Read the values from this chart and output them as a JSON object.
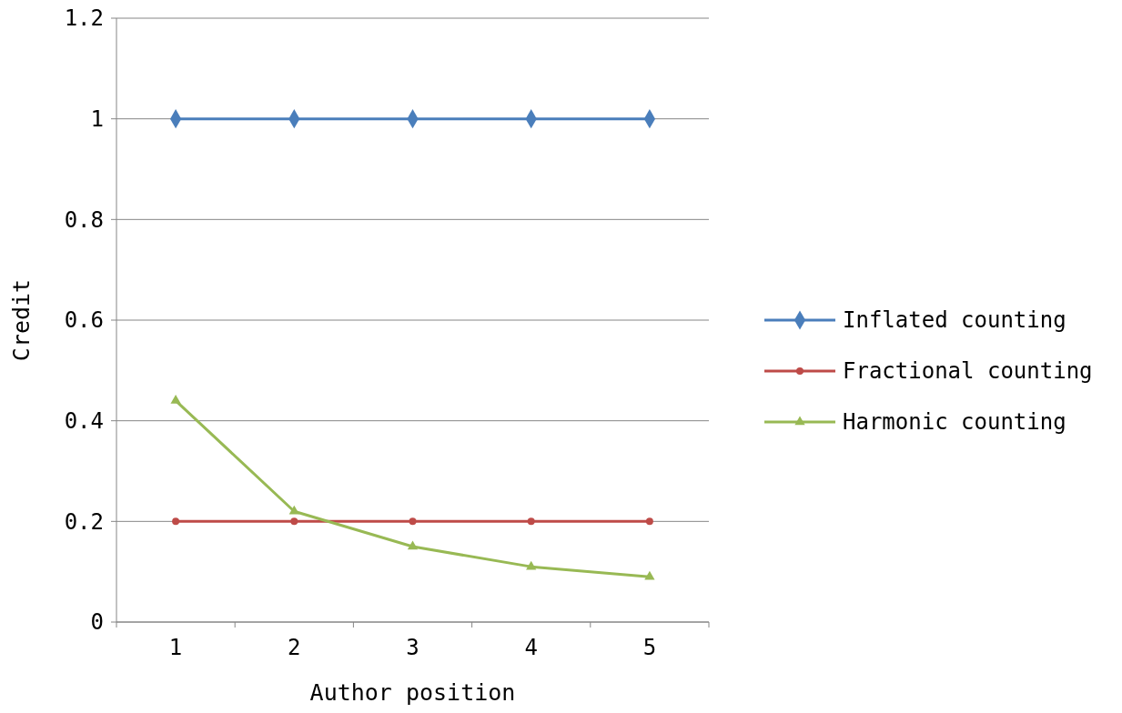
{
  "chart_data": {
    "type": "line",
    "xlabel": "Author position",
    "ylabel": "Credit",
    "categories": [
      "1",
      "2",
      "3",
      "4",
      "5"
    ],
    "series": [
      {
        "name": "Inflated counting",
        "color": "#4a7ebb",
        "marker": "diamond",
        "values": [
          1,
          1,
          1,
          1,
          1
        ]
      },
      {
        "name": "Fractional counting",
        "color": "#be4b48",
        "marker": "circle",
        "values": [
          0.2,
          0.2,
          0.2,
          0.2,
          0.2
        ]
      },
      {
        "name": "Harmonic counting",
        "color": "#98b954",
        "marker": "triangle",
        "values": [
          0.44,
          0.22,
          0.15,
          0.11,
          0.09
        ]
      }
    ],
    "ylim": [
      0,
      1.2
    ],
    "yticks": [
      0,
      0.2,
      0.4,
      0.6,
      0.8,
      1,
      1.2
    ],
    "grid": "y",
    "legend": "right",
    "line_style": "solid"
  }
}
